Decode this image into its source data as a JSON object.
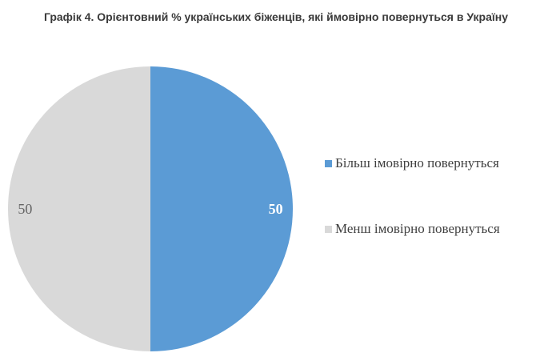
{
  "chart_data": {
    "type": "pie",
    "title": "Графік 4. Орієнтовний % українських біженців, які ймовірно повернуться в Україну",
    "categories": [
      "Більш імовірно повернуться",
      "Менш імовірно повернуться"
    ],
    "values": [
      50,
      50
    ],
    "colors": [
      "#5b9bd5",
      "#d9d9d9"
    ],
    "data_labels": [
      "50",
      "50"
    ],
    "legend_position": "right"
  }
}
